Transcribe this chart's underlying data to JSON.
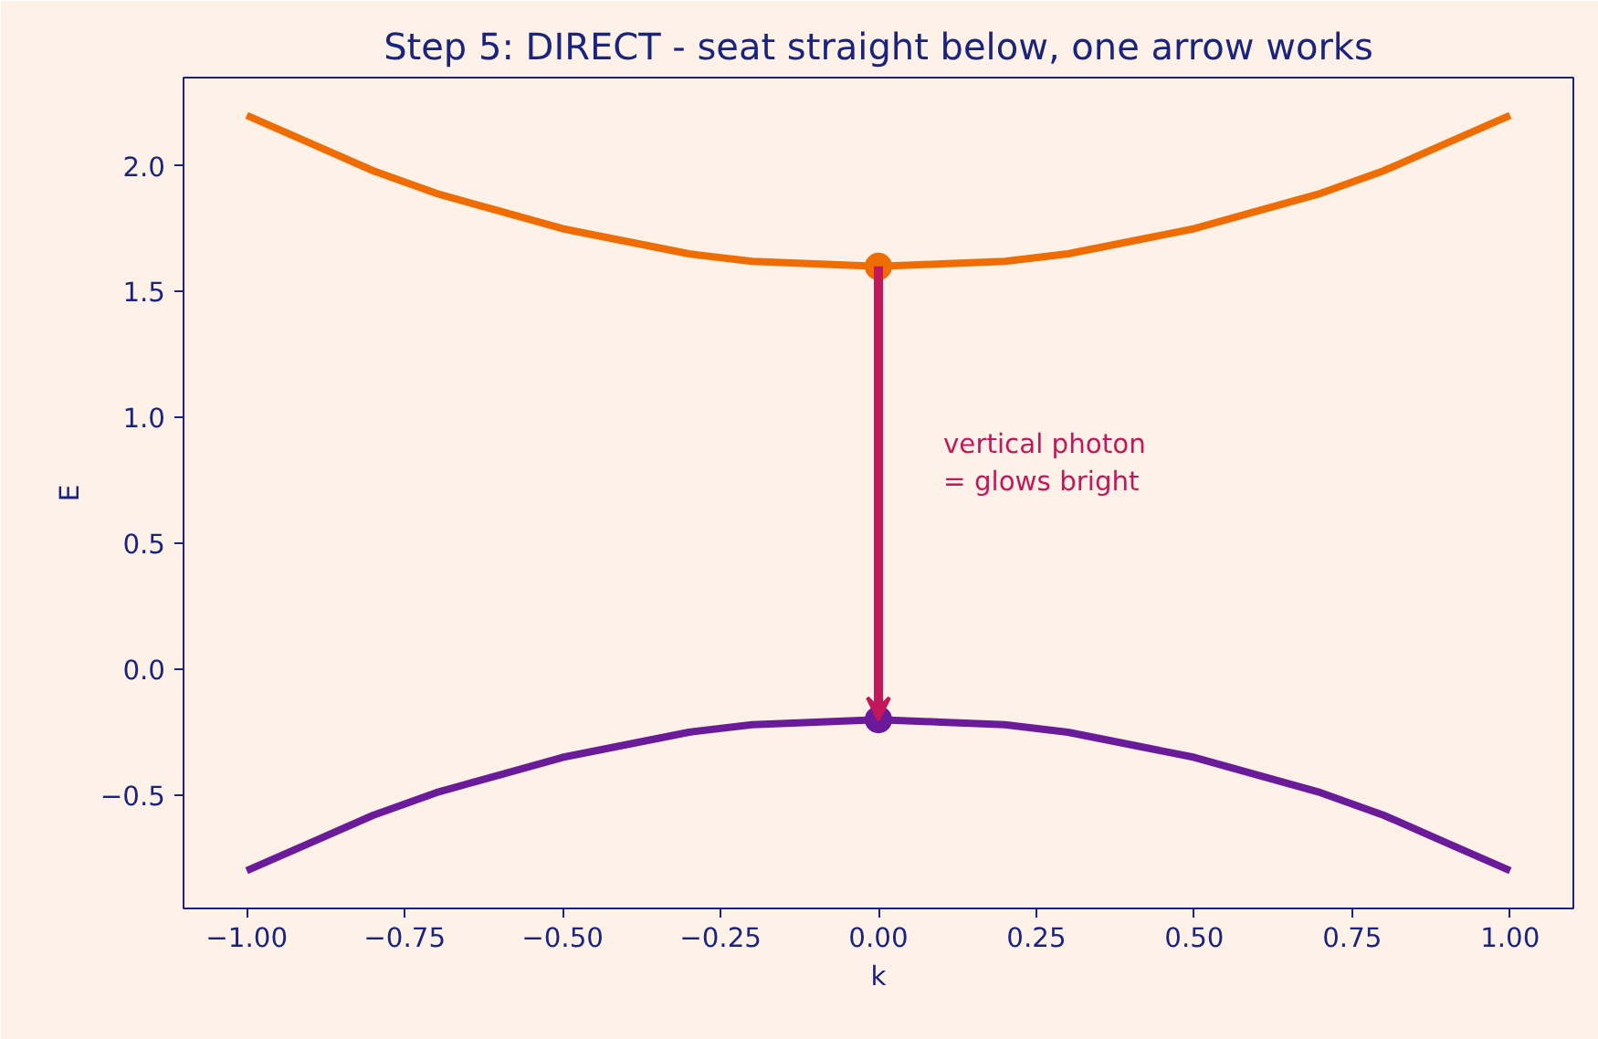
{
  "chart_data": {
    "type": "line",
    "title": "Step 5: DIRECT - seat straight below, one arrow works",
    "xlabel": "k",
    "ylabel": "E",
    "x": [
      -1,
      -0.9,
      -0.8,
      -0.7,
      -0.6,
      -0.5,
      -0.4,
      -0.3,
      -0.2,
      -0.1,
      0,
      0.1,
      0.2,
      0.3,
      0.4,
      0.5,
      0.6,
      0.7,
      0.8,
      0.9,
      1
    ],
    "series": [
      {
        "color": "#ef6c00",
        "values": [
          2.2,
          2.09,
          1.98,
          1.89,
          1.82,
          1.75,
          1.7,
          1.65,
          1.62,
          1.61,
          1.6,
          1.61,
          1.62,
          1.65,
          1.7,
          1.75,
          1.82,
          1.89,
          1.98,
          2.09,
          2.2
        ]
      },
      {
        "color": "#6a1b9a",
        "values": [
          -0.8,
          -0.69,
          -0.58,
          -0.49,
          -0.42,
          -0.35,
          -0.3,
          -0.25,
          -0.22,
          -0.21,
          -0.2,
          -0.21,
          -0.22,
          -0.25,
          -0.3,
          -0.35,
          -0.42,
          -0.49,
          -0.58,
          -0.69,
          -0.8
        ]
      },
      {
        "type": "scatter",
        "color": "#ef6c00",
        "x": [
          0
        ],
        "values": [
          1.6
        ]
      },
      {
        "type": "scatter",
        "color": "#6a1b9a",
        "x": [
          0
        ],
        "values": [
          -0.2
        ]
      }
    ],
    "annotations": [
      "vertical photon\n= glows bright"
    ],
    "xlim": [
      -1.1,
      1.1
    ],
    "ylim": [
      -0.95,
      2.35
    ],
    "xticks": [
      {
        "value": -1,
        "label": "−1.00"
      },
      {
        "value": -0.75,
        "label": "−0.75"
      },
      {
        "value": -0.5,
        "label": "−0.50"
      },
      {
        "value": -0.25,
        "label": "−0.25"
      },
      {
        "value": 0,
        "label": "0.00"
      },
      {
        "value": 0.25,
        "label": "0.25"
      },
      {
        "value": 0.5,
        "label": "0.50"
      },
      {
        "value": 0.75,
        "label": "0.75"
      },
      {
        "value": 1,
        "label": "1.00"
      }
    ],
    "yticks": [
      {
        "value": -0.5,
        "label": "−0.5"
      },
      {
        "value": 0,
        "label": "0.0"
      },
      {
        "value": 0.5,
        "label": "0.5"
      },
      {
        "value": 1,
        "label": "1.0"
      },
      {
        "value": 1.5,
        "label": "1.5"
      },
      {
        "value": 2,
        "label": "2.0"
      }
    ],
    "grid": false,
    "line_style": "solid"
  }
}
